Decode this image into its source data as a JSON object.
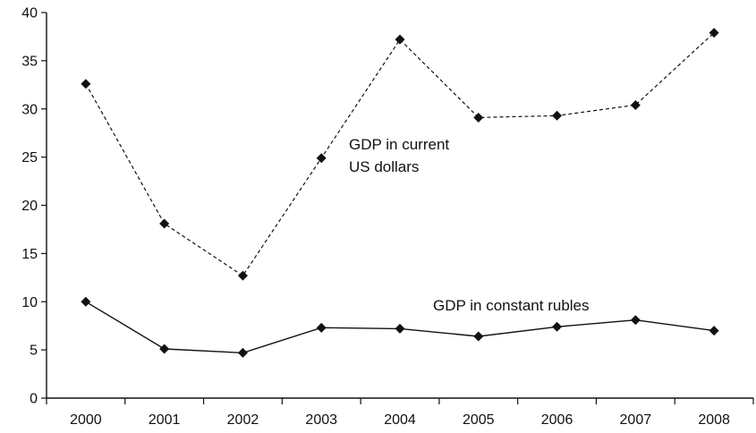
{
  "chart_data": {
    "type": "line",
    "categories": [
      "2000",
      "2001",
      "2002",
      "2003",
      "2004",
      "2005",
      "2006",
      "2007",
      "2008"
    ],
    "series": [
      {
        "name": "GDP in current US dollars",
        "style": "dashed",
        "values": [
          32.6,
          18.1,
          12.7,
          24.9,
          37.2,
          29.1,
          29.3,
          30.4,
          37.9
        ]
      },
      {
        "name": "GDP in constant rubles",
        "style": "solid",
        "values": [
          10.0,
          5.1,
          4.7,
          7.3,
          7.2,
          6.4,
          7.4,
          8.1,
          7.0
        ]
      }
    ],
    "annotations": [
      {
        "series": 0,
        "lines": [
          "GDP in current",
          "US dollars"
        ]
      },
      {
        "series": 1,
        "lines": [
          "GDP in constant rubles"
        ]
      }
    ],
    "ylim": [
      0,
      40
    ],
    "yticks": [
      0,
      5,
      10,
      15,
      20,
      25,
      30,
      35,
      40
    ],
    "title": "",
    "xlabel": "",
    "ylabel": "",
    "grid": false,
    "legend": "none",
    "colors": {
      "line": "#111111",
      "marker": "#111111"
    }
  }
}
